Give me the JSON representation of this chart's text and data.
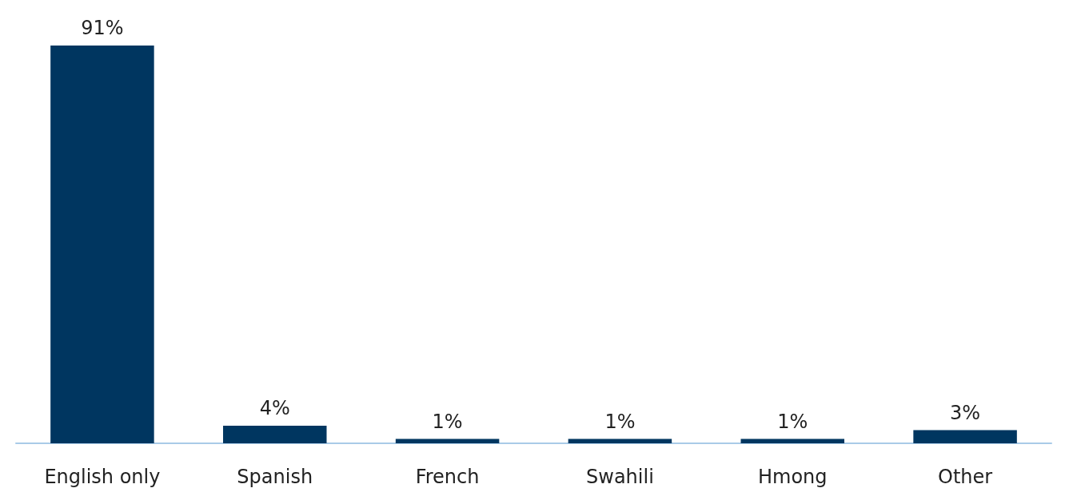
{
  "chart_data": {
    "type": "bar",
    "categories": [
      "English only",
      "Spanish",
      "French",
      "Swahili",
      "Hmong",
      "Other"
    ],
    "values": [
      91,
      4,
      1,
      1,
      1,
      3
    ],
    "value_labels": [
      "91%",
      "4%",
      "1%",
      "1%",
      "1%",
      "3%"
    ],
    "color": "#003660"
  }
}
